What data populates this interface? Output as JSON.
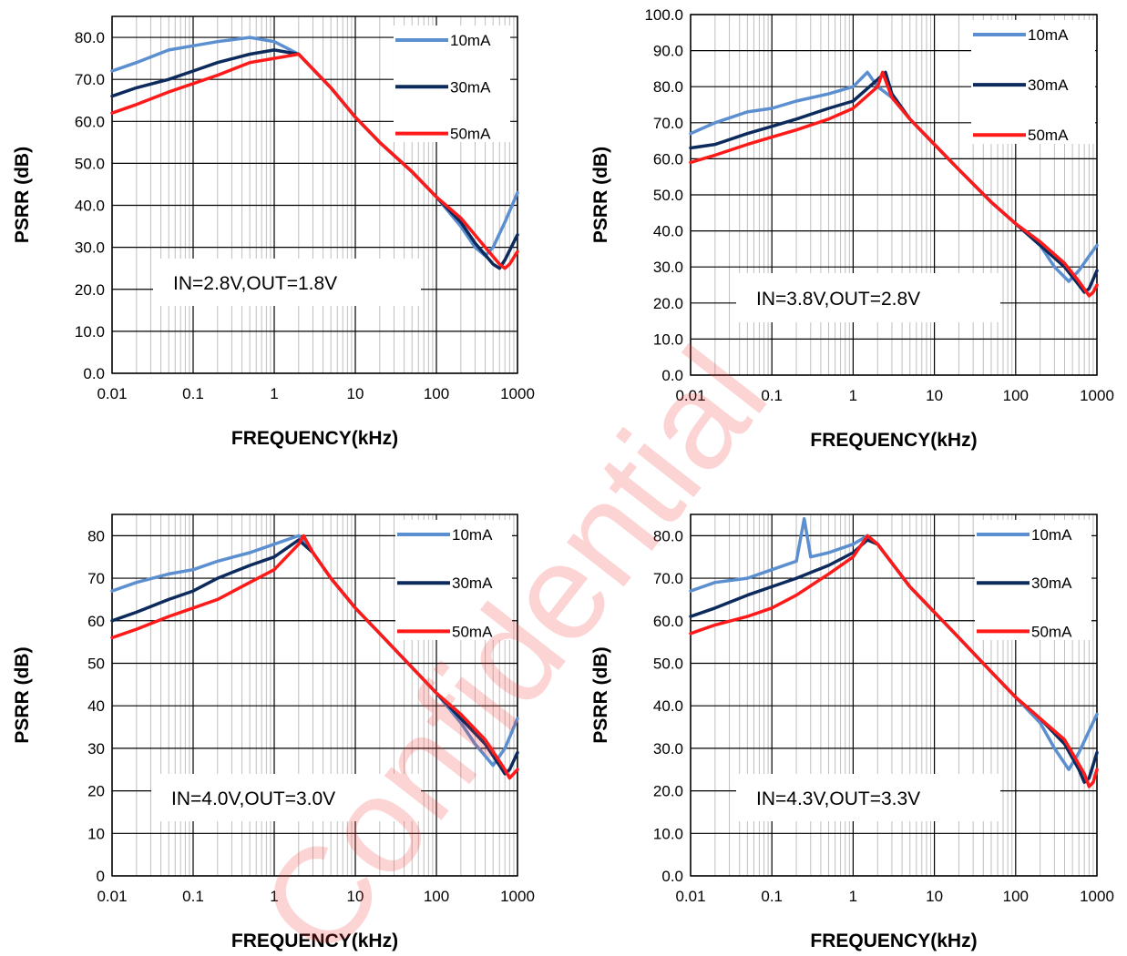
{
  "watermark": "Confidential",
  "chart_data": [
    {
      "type": "line",
      "annotation": "IN=2.8V,OUT=1.8V",
      "xlabel": "FREQUENCY(kHz)",
      "ylabel": "PSRR  (dB)",
      "xscale": "log",
      "xlim": [
        0.01,
        1000
      ],
      "ylim": [
        0,
        85
      ],
      "xticks": [
        "0.01",
        "0.1",
        "1",
        "10",
        "100",
        "1000"
      ],
      "yticks": [
        "0.0",
        "10.0",
        "20.0",
        "30.0",
        "40.0",
        "50.0",
        "60.0",
        "70.0",
        "80.0"
      ],
      "legend": "top-right",
      "series": [
        {
          "name": "10mA",
          "color": "#5b8fd0",
          "x": [
            0.01,
            0.02,
            0.05,
            0.1,
            0.2,
            0.5,
            1,
            2,
            5,
            10,
            20,
            50,
            100,
            200,
            300,
            400,
            500,
            700,
            1000
          ],
          "y": [
            72,
            74,
            77,
            78,
            79,
            80,
            79,
            76,
            68,
            61,
            55,
            48,
            42,
            35,
            30,
            28,
            30,
            36,
            43
          ]
        },
        {
          "name": "30mA",
          "color": "#0d2a5c",
          "x": [
            0.01,
            0.02,
            0.05,
            0.1,
            0.2,
            0.5,
            1,
            2,
            5,
            10,
            20,
            50,
            100,
            200,
            300,
            500,
            600,
            700,
            1000
          ],
          "y": [
            66,
            68,
            70,
            72,
            74,
            76,
            77,
            76,
            68,
            61,
            55,
            48,
            42,
            36,
            31,
            26,
            25,
            27,
            33
          ]
        },
        {
          "name": "50mA",
          "color": "#ff1a1a",
          "x": [
            0.01,
            0.02,
            0.05,
            0.1,
            0.2,
            0.5,
            1,
            2,
            5,
            10,
            20,
            50,
            100,
            200,
            400,
            600,
            700,
            800,
            1000
          ],
          "y": [
            62,
            64,
            67,
            69,
            71,
            74,
            75,
            76,
            68,
            61,
            55,
            48,
            42,
            37,
            30,
            26,
            25,
            26,
            29
          ]
        }
      ]
    },
    {
      "type": "line",
      "annotation": "IN=3.8V,OUT=2.8V",
      "xlabel": "FREQUENCY(kHz)",
      "ylabel": "PSRR  (dB)",
      "xscale": "log",
      "xlim": [
        0.01,
        1000
      ],
      "ylim": [
        0,
        100
      ],
      "xticks": [
        "0.01",
        "0.1",
        "1",
        "10",
        "100",
        "1000"
      ],
      "yticks": [
        "0.0",
        "10.0",
        "20.0",
        "30.0",
        "40.0",
        "50.0",
        "60.0",
        "70.0",
        "80.0",
        "90.0",
        "100.0"
      ],
      "legend": "top-right",
      "series": [
        {
          "name": "10mA",
          "color": "#5b8fd0",
          "x": [
            0.01,
            0.02,
            0.05,
            0.1,
            0.2,
            0.5,
            1,
            1.5,
            2,
            3,
            5,
            10,
            20,
            50,
            100,
            200,
            300,
            450,
            600,
            800,
            1000
          ],
          "y": [
            67,
            70,
            73,
            74,
            76,
            78,
            80,
            84,
            80,
            77,
            71,
            64,
            57,
            48,
            42,
            36,
            30,
            26,
            29,
            33,
            36
          ]
        },
        {
          "name": "30mA",
          "color": "#0d2a5c",
          "x": [
            0.01,
            0.02,
            0.05,
            0.1,
            0.2,
            0.5,
            1,
            2,
            2.5,
            3,
            5,
            10,
            20,
            50,
            100,
            200,
            400,
            600,
            700,
            800,
            1000
          ],
          "y": [
            63,
            64,
            67,
            69,
            71,
            74,
            76,
            82,
            84,
            78,
            71,
            64,
            57,
            48,
            42,
            36,
            30,
            25,
            23,
            24,
            29
          ]
        },
        {
          "name": "50mA",
          "color": "#ff1a1a",
          "x": [
            0.01,
            0.02,
            0.05,
            0.1,
            0.2,
            0.5,
            1,
            2,
            2.3,
            3,
            5,
            10,
            20,
            50,
            100,
            200,
            400,
            600,
            800,
            900,
            1000
          ],
          "y": [
            59,
            61,
            64,
            66,
            68,
            71,
            74,
            80,
            84,
            77,
            71,
            64,
            57,
            48,
            42,
            37,
            31,
            26,
            22,
            23,
            25
          ]
        }
      ]
    },
    {
      "type": "line",
      "annotation": "IN=4.0V,OUT=3.0V",
      "xlabel": "FREQUENCY(kHz)",
      "ylabel": "PSRR  (dB)",
      "xscale": "log",
      "xlim": [
        0.01,
        1000
      ],
      "ylim": [
        0,
        85
      ],
      "xticks": [
        "0.01",
        "0.1",
        "1",
        "10",
        "100",
        "1000"
      ],
      "yticks": [
        "0",
        "10",
        "20",
        "30",
        "40",
        "50",
        "60",
        "70",
        "80"
      ],
      "legend": "top-right",
      "series": [
        {
          "name": "10mA",
          "color": "#5b8fd0",
          "x": [
            0.01,
            0.02,
            0.05,
            0.1,
            0.2,
            0.5,
            1,
            2,
            3,
            5,
            10,
            20,
            50,
            100,
            200,
            300,
            500,
            700,
            1000
          ],
          "y": [
            67,
            69,
            71,
            72,
            74,
            76,
            78,
            80,
            76,
            70,
            63,
            57,
            49,
            43,
            36,
            31,
            26,
            30,
            37
          ]
        },
        {
          "name": "30mA",
          "color": "#0d2a5c",
          "x": [
            0.01,
            0.02,
            0.05,
            0.1,
            0.2,
            0.5,
            1,
            2,
            3,
            5,
            10,
            20,
            50,
            100,
            200,
            400,
            600,
            700,
            800,
            1000
          ],
          "y": [
            60,
            62,
            65,
            67,
            70,
            73,
            75,
            79,
            76,
            70,
            63,
            57,
            49,
            43,
            37,
            31,
            26,
            24,
            25,
            29
          ]
        },
        {
          "name": "50mA",
          "color": "#ff1a1a",
          "x": [
            0.01,
            0.02,
            0.05,
            0.1,
            0.2,
            0.5,
            1,
            2,
            2.3,
            3,
            5,
            10,
            20,
            50,
            100,
            200,
            400,
            700,
            800,
            1000
          ],
          "y": [
            56,
            58,
            61,
            63,
            65,
            69,
            72,
            78,
            80,
            76,
            70,
            63,
            57,
            49,
            43,
            38,
            32,
            25,
            23,
            25
          ]
        }
      ]
    },
    {
      "type": "line",
      "annotation": "IN=4.3V,OUT=3.3V",
      "xlabel": "FREQUENCY(kHz)",
      "ylabel": "PSRR  (dB)",
      "xscale": "log",
      "xlim": [
        0.01,
        1000
      ],
      "ylim": [
        0,
        85
      ],
      "xticks": [
        "0.01",
        "0.1",
        "1",
        "10",
        "100",
        "1000"
      ],
      "yticks": [
        "0.0",
        "10.0",
        "20.0",
        "30.0",
        "40.0",
        "50.0",
        "60.0",
        "70.0",
        "80.0"
      ],
      "legend": "top-right",
      "series": [
        {
          "name": "10mA",
          "color": "#5b8fd0",
          "x": [
            0.01,
            0.02,
            0.05,
            0.1,
            0.2,
            0.25,
            0.3,
            0.5,
            1,
            1.5,
            2,
            5,
            10,
            20,
            50,
            100,
            200,
            300,
            450,
            600,
            1000
          ],
          "y": [
            67,
            69,
            70,
            72,
            74,
            84,
            75,
            76,
            78,
            80,
            78,
            68,
            62,
            56,
            48,
            42,
            36,
            30,
            25,
            29,
            38
          ]
        },
        {
          "name": "30mA",
          "color": "#0d2a5c",
          "x": [
            0.01,
            0.02,
            0.05,
            0.1,
            0.2,
            0.5,
            1,
            1.5,
            2,
            5,
            10,
            20,
            50,
            100,
            200,
            400,
            600,
            700,
            800,
            1000
          ],
          "y": [
            61,
            63,
            66,
            68,
            70,
            73,
            76,
            79,
            78,
            68,
            62,
            56,
            48,
            42,
            37,
            31,
            25,
            22,
            23,
            29
          ]
        },
        {
          "name": "50mA",
          "color": "#ff1a1a",
          "x": [
            0.01,
            0.02,
            0.05,
            0.1,
            0.2,
            0.5,
            1,
            1.5,
            2,
            5,
            10,
            20,
            50,
            100,
            200,
            400,
            700,
            800,
            900,
            1000
          ],
          "y": [
            57,
            59,
            61,
            63,
            66,
            71,
            75,
            80,
            78,
            68,
            62,
            56,
            48,
            42,
            37,
            32,
            24,
            21,
            22,
            25
          ]
        }
      ]
    }
  ]
}
